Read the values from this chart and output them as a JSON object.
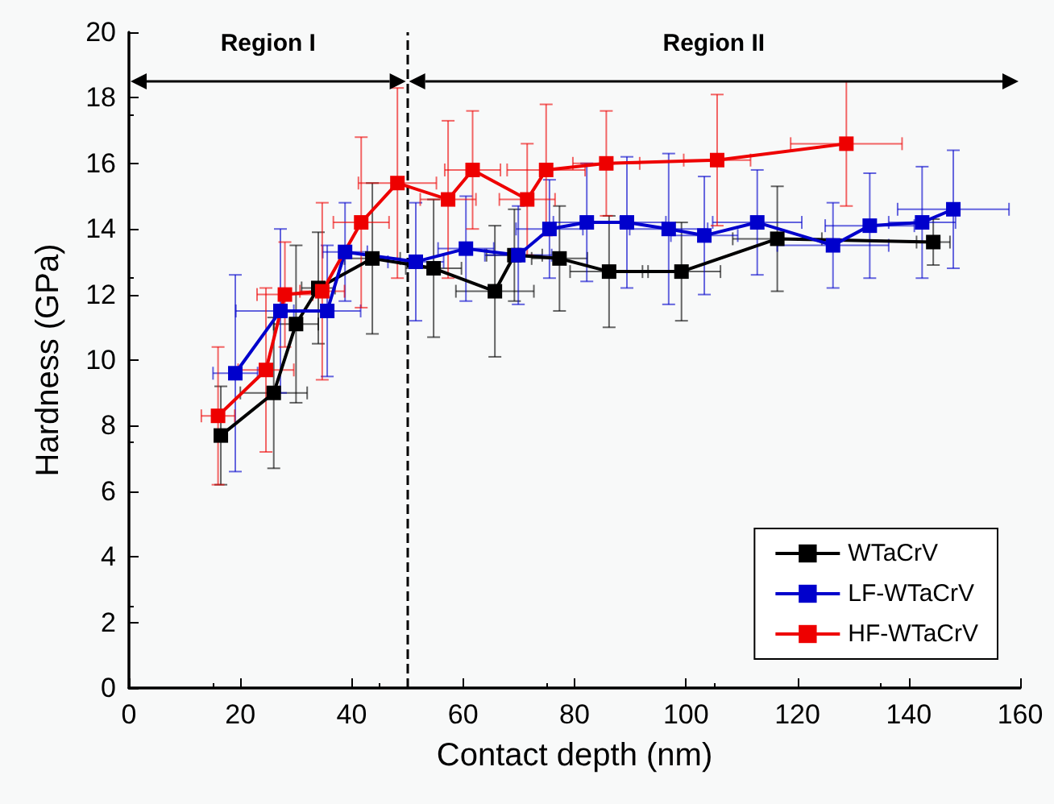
{
  "chart_data": {
    "type": "line",
    "xlabel": "Contact depth (nm)",
    "ylabel": "Hardness (GPa)",
    "xlim": [
      0,
      160
    ],
    "xticks": [
      0,
      20,
      40,
      60,
      80,
      100,
      120,
      140,
      160
    ],
    "ylim": [
      0,
      20
    ],
    "yticks": [
      0,
      2,
      4,
      6,
      8,
      10,
      12,
      14,
      16,
      18,
      20
    ],
    "grid": false,
    "legend": "bottom right",
    "marker": "square",
    "line_style": "solid",
    "ref_lines": [
      {
        "axis": "x",
        "value": 50,
        "line_style": "dashed",
        "color": "#000000"
      }
    ],
    "annotations": [
      "Region I",
      "Region II"
    ],
    "series": [
      {
        "name": "WTaCrV",
        "color": "#000000",
        "x": [
          16.5,
          26,
          30,
          34,
          43.7,
          54.7,
          65.7,
          69.2,
          77.3,
          86.2,
          99.2,
          116.4,
          144.4
        ],
        "values": [
          7.7,
          9.0,
          11.1,
          12.2,
          13.1,
          12.8,
          12.1,
          13.2,
          13.1,
          12.7,
          12.7,
          13.7,
          13.6
        ],
        "errors": [
          1.5,
          2.3,
          2.4,
          1.7,
          2.3,
          2.1,
          2.0,
          1.4,
          1.6,
          1.7,
          1.5,
          1.6,
          0.7
        ],
        "xerrors": [
          1,
          6,
          4,
          3,
          5,
          5,
          7,
          5,
          5,
          7,
          7,
          8,
          3
        ]
      },
      {
        "name": "LF-WTaCrV",
        "color": "#0000cc",
        "x": [
          19.1,
          27.2,
          35.6,
          38.8,
          51.5,
          60.5,
          69.9,
          75.5,
          82.2,
          89.4,
          96.9,
          103.3,
          112.8,
          126.4,
          133,
          142.4,
          148
        ],
        "values": [
          9.6,
          11.5,
          11.5,
          13.3,
          13.0,
          13.4,
          13.2,
          14.0,
          14.2,
          14.2,
          14.0,
          13.8,
          14.2,
          13.5,
          14.1,
          14.2,
          14.6
        ],
        "errors": [
          3.0,
          2.5,
          2.0,
          1.5,
          1.8,
          1.6,
          1.5,
          1.5,
          1.8,
          2.0,
          2.3,
          1.8,
          1.6,
          1.3,
          1.6,
          1.7,
          1.8
        ],
        "xerrors": [
          4,
          8,
          6,
          4,
          5,
          5,
          6,
          6,
          6,
          7,
          7,
          6,
          8,
          10,
          8,
          6,
          10
        ]
      },
      {
        "name": "HF-WTaCrV",
        "color": "#ee0000",
        "x": [
          16,
          24.6,
          28,
          34.7,
          41.7,
          48.2,
          57.3,
          61.7,
          71.5,
          74.9,
          85.7,
          105.6,
          128.8
        ],
        "values": [
          8.3,
          9.7,
          12.0,
          12.1,
          14.2,
          15.4,
          14.9,
          15.8,
          14.9,
          15.8,
          16.0,
          16.1,
          16.6
        ],
        "errors": [
          2.1,
          2.5,
          1.6,
          2.7,
          2.6,
          2.9,
          2.4,
          1.8,
          1.7,
          2.0,
          1.6,
          2.0,
          1.9
        ],
        "xerrors": [
          3,
          5,
          5,
          4,
          5,
          7,
          5,
          5,
          5,
          7,
          6,
          6,
          10
        ]
      }
    ]
  }
}
